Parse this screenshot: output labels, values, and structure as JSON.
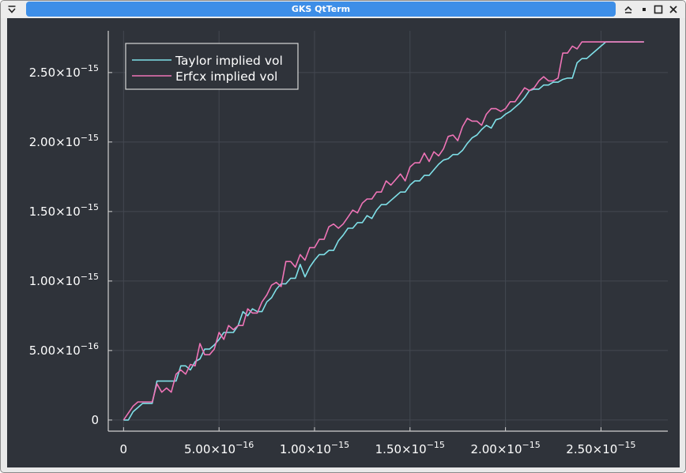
{
  "window": {
    "title": "GKS QtTerm",
    "icons": [
      "menu-chevron-icon",
      "shade-up-icon",
      "minimize-icon",
      "maximize-icon",
      "close-icon"
    ]
  },
  "colors": {
    "background": "#2f333a",
    "grid": "#434851",
    "axis": "#d0d0d0",
    "text": "#ffffff",
    "taylor": "#7fe0e8",
    "erfcx": "#ef74b7"
  },
  "chart_data": {
    "type": "line",
    "grid": true,
    "legend_position": "top-left",
    "xlim": [
      -8e-17,
      2.85e-15
    ],
    "ylim": [
      -8e-17,
      2.8e-15
    ],
    "x_ticks": [
      {
        "value": 0,
        "mant": "0",
        "exp": ""
      },
      {
        "value": 5e-16,
        "mant": "5.00×10",
        "exp": "−16"
      },
      {
        "value": 1e-15,
        "mant": "1.00×10",
        "exp": "−15"
      },
      {
        "value": 1.5e-15,
        "mant": "1.50×10",
        "exp": "−15"
      },
      {
        "value": 2e-15,
        "mant": "2.00×10",
        "exp": "−15"
      },
      {
        "value": 2.5e-15,
        "mant": "2.50×10",
        "exp": "−15"
      }
    ],
    "y_ticks": [
      {
        "value": 0,
        "mant": "0",
        "exp": ""
      },
      {
        "value": 5e-16,
        "mant": "5.00×10",
        "exp": "−16"
      },
      {
        "value": 1e-15,
        "mant": "1.00×10",
        "exp": "−15"
      },
      {
        "value": 1.5e-15,
        "mant": "1.50×10",
        "exp": "−15"
      },
      {
        "value": 2e-15,
        "mant": "2.00×10",
        "exp": "−15"
      },
      {
        "value": 2.5e-15,
        "mant": "2.50×10",
        "exp": "−15"
      }
    ],
    "series": [
      {
        "name": "Taylor implied vol",
        "color": "#7fe0e8",
        "x": [
          0,
          2.5e-17,
          5e-17,
          7.5e-17,
          1e-16,
          1.25e-16,
          1.5e-16,
          1.75e-16,
          2e-16,
          2.25e-16,
          2.5e-16,
          2.75e-16,
          3e-16,
          3.25e-16,
          3.5e-16,
          3.75e-16,
          4e-16,
          4.25e-16,
          4.5e-16,
          4.75e-16,
          5e-16,
          5.25e-16,
          5.5e-16,
          5.75e-16,
          6e-16,
          6.25e-16,
          6.5e-16,
          6.75e-16,
          7e-16,
          7.25e-16,
          7.5e-16,
          7.75e-16,
          8e-16,
          8.25e-16,
          8.5e-16,
          8.75e-16,
          9e-16,
          9.25e-16,
          9.5e-16,
          9.75e-16,
          1e-15,
          1.025e-15,
          1.05e-15,
          1.075e-15,
          1.1e-15,
          1.125e-15,
          1.15e-15,
          1.175e-15,
          1.2e-15,
          1.225e-15,
          1.25e-15,
          1.275e-15,
          1.3e-15,
          1.325e-15,
          1.35e-15,
          1.375e-15,
          1.4e-15,
          1.425e-15,
          1.45e-15,
          1.475e-15,
          1.5e-15,
          1.525e-15,
          1.55e-15,
          1.575e-15,
          1.6e-15,
          1.625e-15,
          1.65e-15,
          1.675e-15,
          1.7e-15,
          1.725e-15,
          1.75e-15,
          1.775e-15,
          1.8e-15,
          1.825e-15,
          1.85e-15,
          1.875e-15,
          1.9e-15,
          1.925e-15,
          1.95e-15,
          1.975e-15,
          2e-15,
          2.025e-15,
          2.05e-15,
          2.075e-15,
          2.1e-15,
          2.125e-15,
          2.15e-15,
          2.175e-15,
          2.2e-15,
          2.225e-15,
          2.25e-15,
          2.275e-15,
          2.3e-15,
          2.325e-15,
          2.35e-15,
          2.375e-15,
          2.4e-15,
          2.425e-15,
          2.45e-15,
          2.475e-15,
          2.5e-15,
          2.525e-15,
          2.55e-15,
          2.575e-15,
          2.6e-15,
          2.625e-15,
          2.65e-15,
          2.675e-15,
          2.7e-15,
          2.725e-15
        ],
        "y": [
          0,
          0,
          6e-17,
          9e-17,
          1.2e-16,
          1.2e-16,
          1.2e-16,
          2.8e-16,
          2.8e-16,
          2.8e-16,
          2.8e-16,
          2.8e-16,
          3.9e-16,
          3.9e-16,
          3.6e-16,
          4.2e-16,
          4.4e-16,
          5.1e-16,
          5.1e-16,
          5.4e-16,
          5.8e-16,
          6.3e-16,
          6.3e-16,
          6.3e-16,
          6.8e-16,
          7.8e-16,
          7.5e-16,
          8e-16,
          7.8e-16,
          7.8e-16,
          8.5e-16,
          8.8e-16,
          9.4e-16,
          9.8e-16,
          9.8e-16,
          1.02e-15,
          1.02e-15,
          1.12e-15,
          1.03e-15,
          1.1e-15,
          1.15e-15,
          1.19e-15,
          1.19e-15,
          1.22e-15,
          1.22e-15,
          1.29e-15,
          1.33e-15,
          1.38e-15,
          1.38e-15,
          1.42e-15,
          1.42e-15,
          1.47e-15,
          1.45e-15,
          1.51e-15,
          1.55e-15,
          1.55e-15,
          1.58e-15,
          1.61e-15,
          1.64e-15,
          1.64e-15,
          1.69e-15,
          1.72e-15,
          1.72e-15,
          1.76e-15,
          1.76e-15,
          1.8e-15,
          1.84e-15,
          1.87e-15,
          1.88e-15,
          1.91e-15,
          1.91e-15,
          1.94e-15,
          1.99e-15,
          2.03e-15,
          2.05e-15,
          2.09e-15,
          2.12e-15,
          2.1e-15,
          2.16e-15,
          2.17e-15,
          2.2e-15,
          2.22e-15,
          2.25e-15,
          2.28e-15,
          2.32e-15,
          2.37e-15,
          2.38e-15,
          2.38e-15,
          2.41e-15,
          2.41e-15,
          2.43e-15,
          2.43e-15,
          2.45e-15,
          2.46e-15,
          2.46e-15,
          2.57e-15,
          2.6e-15,
          2.6e-15,
          2.63e-15,
          2.66e-15,
          2.69e-15,
          2.72e-15,
          2.72e-15,
          2.72e-15,
          2.72e-15,
          2.72e-15,
          2.72e-15,
          2.72e-15,
          2.72e-15,
          2.72e-15
        ]
      },
      {
        "name": "Erfcx implied vol",
        "color": "#ef74b7",
        "x": [
          0,
          2.5e-17,
          5e-17,
          7.5e-17,
          1e-16,
          1.25e-16,
          1.5e-16,
          1.75e-16,
          2e-16,
          2.25e-16,
          2.5e-16,
          2.75e-16,
          3e-16,
          3.25e-16,
          3.5e-16,
          3.75e-16,
          4e-16,
          4.25e-16,
          4.5e-16,
          4.75e-16,
          5e-16,
          5.25e-16,
          5.5e-16,
          5.75e-16,
          6e-16,
          6.25e-16,
          6.5e-16,
          6.75e-16,
          7e-16,
          7.25e-16,
          7.5e-16,
          7.75e-16,
          8e-16,
          8.25e-16,
          8.5e-16,
          8.75e-16,
          9e-16,
          9.25e-16,
          9.5e-16,
          9.75e-16,
          1e-15,
          1.025e-15,
          1.05e-15,
          1.075e-15,
          1.1e-15,
          1.125e-15,
          1.15e-15,
          1.175e-15,
          1.2e-15,
          1.225e-15,
          1.25e-15,
          1.275e-15,
          1.3e-15,
          1.325e-15,
          1.35e-15,
          1.375e-15,
          1.4e-15,
          1.425e-15,
          1.45e-15,
          1.475e-15,
          1.5e-15,
          1.525e-15,
          1.55e-15,
          1.575e-15,
          1.6e-15,
          1.625e-15,
          1.65e-15,
          1.675e-15,
          1.7e-15,
          1.725e-15,
          1.75e-15,
          1.775e-15,
          1.8e-15,
          1.825e-15,
          1.85e-15,
          1.875e-15,
          1.9e-15,
          1.925e-15,
          1.95e-15,
          1.975e-15,
          2e-15,
          2.025e-15,
          2.05e-15,
          2.075e-15,
          2.1e-15,
          2.125e-15,
          2.15e-15,
          2.175e-15,
          2.2e-15,
          2.225e-15,
          2.25e-15,
          2.275e-15,
          2.3e-15,
          2.325e-15,
          2.35e-15,
          2.375e-15,
          2.4e-15,
          2.425e-15,
          2.45e-15,
          2.475e-15,
          2.5e-15,
          2.525e-15,
          2.55e-15,
          2.575e-15,
          2.6e-15,
          2.625e-15,
          2.65e-15,
          2.675e-15,
          2.7e-15,
          2.725e-15
        ],
        "y": [
          0,
          5e-17,
          1e-16,
          1.3e-16,
          1.3e-16,
          1.3e-16,
          1.3e-16,
          2.6e-16,
          2e-16,
          2.3e-16,
          2e-16,
          3.3e-16,
          3.6e-16,
          3.3e-16,
          4e-16,
          3.9e-16,
          5.5e-16,
          4.7e-16,
          4.7e-16,
          5.1e-16,
          6.3e-16,
          5.8e-16,
          6.8e-16,
          6.5e-16,
          6.8e-16,
          6.8e-16,
          8e-16,
          7.7e-16,
          7.7e-16,
          8.5e-16,
          9e-16,
          9.7e-16,
          9.9e-16,
          9.6e-16,
          1.14e-15,
          1.14e-15,
          1.1e-15,
          1.19e-15,
          1.15e-15,
          1.24e-15,
          1.24e-15,
          1.3e-15,
          1.3e-15,
          1.39e-15,
          1.41e-15,
          1.38e-15,
          1.41e-15,
          1.46e-15,
          1.51e-15,
          1.49e-15,
          1.56e-15,
          1.59e-15,
          1.59e-15,
          1.64e-15,
          1.64e-15,
          1.72e-15,
          1.69e-15,
          1.73e-15,
          1.77e-15,
          1.72e-15,
          1.82e-15,
          1.85e-15,
          1.85e-15,
          1.92e-15,
          1.86e-15,
          1.93e-15,
          1.9e-15,
          1.95e-15,
          2.04e-15,
          2.05e-15,
          2.01e-15,
          2.11e-15,
          2.17e-15,
          2.15e-15,
          2.15e-15,
          2.12e-15,
          2.2e-15,
          2.24e-15,
          2.24e-15,
          2.22e-15,
          2.24e-15,
          2.29e-15,
          2.29e-15,
          2.34e-15,
          2.39e-15,
          2.37e-15,
          2.39e-15,
          2.44e-15,
          2.47e-15,
          2.44e-15,
          2.44e-15,
          2.46e-15,
          2.64e-15,
          2.64e-15,
          2.69e-15,
          2.67e-15,
          2.72e-15,
          2.72e-15,
          2.72e-15,
          2.72e-15,
          2.72e-15,
          2.72e-15,
          2.72e-15,
          2.72e-15,
          2.72e-15,
          2.72e-15,
          2.72e-15,
          2.72e-15,
          2.72e-15,
          2.72e-15
        ]
      }
    ]
  }
}
